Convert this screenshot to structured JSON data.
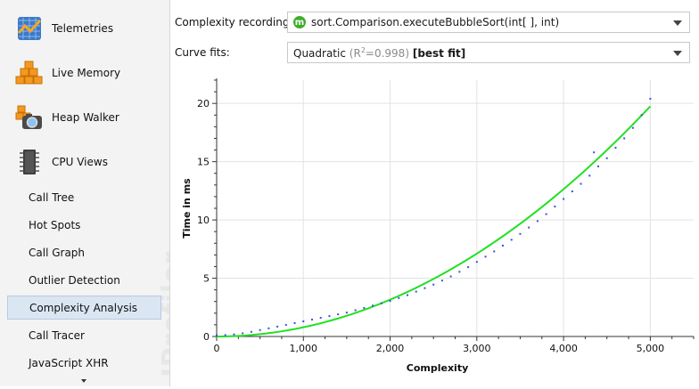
{
  "sidebar": {
    "views": [
      {
        "label": "Telemetries",
        "icon": "telemetries-icon"
      },
      {
        "label": "Live Memory",
        "icon": "live-memory-icon"
      },
      {
        "label": "Heap Walker",
        "icon": "heap-walker-icon"
      },
      {
        "label": "CPU Views",
        "icon": "cpu-views-icon"
      }
    ],
    "items": [
      {
        "label": "Call Tree"
      },
      {
        "label": "Hot Spots"
      },
      {
        "label": "Call Graph"
      },
      {
        "label": "Outlier Detection"
      },
      {
        "label": "Complexity Analysis",
        "selected": true
      },
      {
        "label": "Call Tracer"
      },
      {
        "label": "JavaScript XHR"
      }
    ],
    "watermark": "JProfiler"
  },
  "controls": {
    "recording_label": "Complexity recording:",
    "recording_value": "sort.Comparison.executeBubbleSort(int[ ], int)",
    "recording_icon_letter": "m",
    "curve_label": "Curve fits:",
    "curve_value_name": "Quadratic",
    "curve_value_r2_open": "(R",
    "curve_value_r2_sup": "2",
    "curve_value_r2_rest": "=0.998)",
    "curve_value_best": "[best fit]"
  },
  "chart_data": {
    "type": "scatter",
    "xlabel": "Complexity",
    "ylabel": "Time in ms",
    "xlim": [
      0,
      5500
    ],
    "ylim": [
      0,
      22
    ],
    "xticks": [
      0,
      1000,
      2000,
      3000,
      4000,
      5000
    ],
    "xtick_labels": [
      "0",
      "1,000",
      "2,000",
      "3,000",
      "4,000",
      "5,000"
    ],
    "yticks": [
      0,
      5,
      10,
      15,
      20
    ],
    "ytick_labels": [
      "0",
      "5",
      "10",
      "15",
      "20"
    ],
    "grid": true,
    "series": [
      {
        "kind": "points",
        "color": "#3b4fe0",
        "x": [
          0,
          100,
          200,
          300,
          400,
          500,
          600,
          700,
          800,
          900,
          1000,
          1100,
          1200,
          1300,
          1400,
          1500,
          1600,
          1700,
          1800,
          1900,
          2000,
          2100,
          2200,
          2300,
          2400,
          2500,
          2600,
          2700,
          2800,
          2900,
          3000,
          3100,
          3200,
          3300,
          3400,
          3500,
          3600,
          3700,
          3800,
          3900,
          4000,
          4100,
          4200,
          4300,
          4350,
          4400,
          4500,
          4600,
          4700,
          4800,
          4900,
          5000
        ],
        "y": [
          0.1,
          0.12,
          0.18,
          0.27,
          0.4,
          0.55,
          0.7,
          0.85,
          1.0,
          1.15,
          1.3,
          1.45,
          1.6,
          1.75,
          1.9,
          2.05,
          2.25,
          2.45,
          2.65,
          2.85,
          3.05,
          3.3,
          3.55,
          3.85,
          4.15,
          4.45,
          4.8,
          5.15,
          5.55,
          5.95,
          6.4,
          6.85,
          7.3,
          7.8,
          8.3,
          8.8,
          9.35,
          9.9,
          10.5,
          11.15,
          11.8,
          12.45,
          13.1,
          13.8,
          15.8,
          14.6,
          15.3,
          16.2,
          17.0,
          17.9,
          19.0,
          20.4
        ]
      },
      {
        "kind": "fit",
        "name": "Quadratic",
        "color": "#22e022",
        "coefficients": {
          "a": 7.9e-07,
          "b": 0.0,
          "c": 0.0
        },
        "x_range": [
          0,
          5000
        ]
      }
    ]
  }
}
